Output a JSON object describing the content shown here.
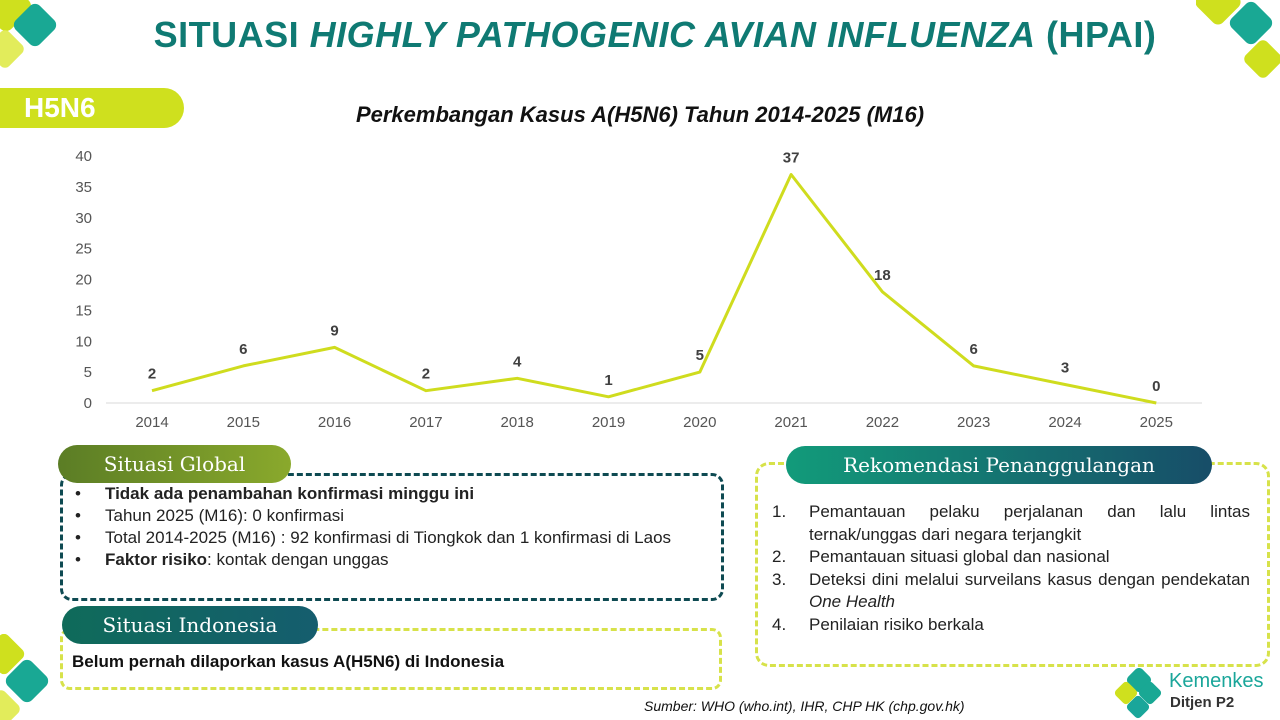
{
  "header": {
    "title_prefix": "SITUASI ",
    "title_italic": "HIGHLY PATHOGENIC AVIAN INFLUENZA",
    "title_suffix": " (HPAI)",
    "tag": "H5N6"
  },
  "chart_data": {
    "type": "line",
    "title": "Perkembangan Kasus A(H5N6) Tahun 2014-2025 (M16)",
    "categories": [
      "2014",
      "2015",
      "2016",
      "2017",
      "2018",
      "2019",
      "2020",
      "2021",
      "2022",
      "2023",
      "2024",
      "2025"
    ],
    "values": [
      2,
      6,
      9,
      2,
      4,
      1,
      5,
      37,
      18,
      6,
      3,
      0
    ],
    "ylim": [
      0,
      40
    ],
    "yticks": [
      "0",
      "5",
      "10",
      "15",
      "20",
      "25",
      "30",
      "35",
      "40"
    ],
    "grid": false,
    "color": "#cfdc1e"
  },
  "global": {
    "heading": "Situasi Global",
    "item1": "Tidak ada penambahan konfirmasi minggu ini",
    "item2": "Tahun 2025 (M16): 0 konfirmasi",
    "item3": "Total 2014-2025 (M16) : 92 konfirmasi di Tiongkok dan 1 konfirmasi di Laos",
    "item4_bold": "Faktor risiko",
    "item4_rest": ": kontak dengan unggas"
  },
  "indonesia": {
    "heading": "Situasi Indonesia",
    "text": "Belum pernah dilaporkan kasus A(H5N6) di Indonesia"
  },
  "rekomendasi": {
    "heading": "Rekomendasi Penanggulangan",
    "n1": "1.",
    "item1": "Pemantauan pelaku perjalanan dan lalu lintas ternak/unggas dari negara terjangkit",
    "n2": "2.",
    "item2": "Pemantauan situasi global dan nasional",
    "n3": "3.",
    "item3": "Deteksi dini melalui surveilans kasus dengan pendekatan ",
    "item3_italic": "One Health",
    "n4": "4.",
    "item4": "Penilaian risiko berkala"
  },
  "source": "Sumber: WHO (who.int), IHR, CHP HK (chp.gov.hk)",
  "logo": {
    "name": "Kemenkes",
    "sub": "Ditjen P2"
  }
}
